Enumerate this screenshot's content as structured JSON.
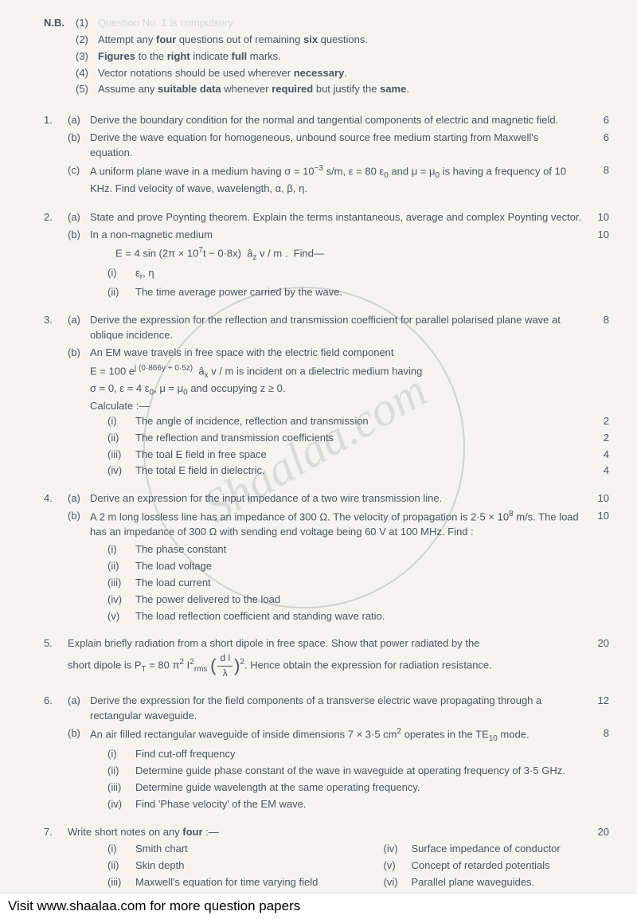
{
  "nb": {
    "label": "N.B.",
    "items": [
      {
        "num": "(1)",
        "text": "Question No. 1 is compulsory."
      },
      {
        "num": "(2)",
        "text_html": "Attempt any <b>four</b> questions out of remaining <b>six</b> questions."
      },
      {
        "num": "(3)",
        "text_html": "<b>Figures</b> to the <b>right</b> indicate <b>full</b> marks."
      },
      {
        "num": "(4)",
        "text_html": "Vector notations should be used wherever <b>necessary</b>."
      },
      {
        "num": "(5)",
        "text_html": "Assume any <b>suitable data</b> whenever <b>required</b> but justify the <b>same</b>."
      }
    ]
  },
  "questions": [
    {
      "num": "1.",
      "subs": [
        {
          "label": "(a)",
          "text": "Derive the boundary condition for the normal and tangential components of electric and magnetic field.",
          "marks": "6"
        },
        {
          "label": "(b)",
          "text": "Derive the wave equation for homogeneous, unbound source free medium starting from Maxwell's equation.",
          "marks": "6"
        },
        {
          "label": "(c)",
          "text_html": "A uniform plane wave in a medium having σ = 10<sup>−3</sup> s/m, ε = 80 ε<sub>0</sub> and μ = μ<sub>0</sub> is having a frequency of 10 KHz. Find velocity of wave, wavelength, α, β, η.",
          "marks": "8"
        }
      ]
    },
    {
      "num": "2.",
      "subs": [
        {
          "label": "(a)",
          "text": "State and prove Poynting theorem. Explain the terms instantaneous, average and complex Poynting vector.",
          "marks": "10"
        },
        {
          "label": "(b)",
          "text": "In a non-magnetic medium",
          "marks": "10",
          "eq_html": "E = 4 sin (2π × 10<sup>7</sup>t − 0·8x) &nbsp;â<sub>z</sub> v / m . &nbsp;Find—",
          "romans": [
            {
              "label": "(i)",
              "text_html": "ε<sub>r</sub>, η"
            },
            {
              "label": "(ii)",
              "text": "The time average power carried by the wave."
            }
          ]
        }
      ]
    },
    {
      "num": "3.",
      "subs": [
        {
          "label": "(a)",
          "text": "Derive the expression for the reflection and transmission coefficient for parallel polarised plane wave at oblique incidence.",
          "marks": "8"
        },
        {
          "label": "(b)",
          "text": "An EM wave travels in free space with the electric field component",
          "extra_lines_html": [
            "E = 100 e<sup>j (0·866y + 0·5z)</sup> &nbsp;â<sub>x</sub> v / m is incident on a dielectric medium having",
            "σ = 0, ε = 4 ε<sub>0</sub>, μ = μ<sub>0</sub> and occupying z ≥ 0.",
            "Calculate :—"
          ],
          "romans_marks": [
            {
              "label": "(i)",
              "text": "The angle of incidence, reflection and transmission",
              "marks": "2"
            },
            {
              "label": "(ii)",
              "text": "The reflection and transmission coefficients",
              "marks": "2"
            },
            {
              "label": "(iii)",
              "text": "The toal E field in free space",
              "marks": "4"
            },
            {
              "label": "(iv)",
              "text": "The total E field in dielectric.",
              "marks": "4"
            }
          ]
        }
      ]
    },
    {
      "num": "4.",
      "subs": [
        {
          "label": "(a)",
          "text": "Derive an expression for the input impedance of a two wire transmission line.",
          "marks": "10"
        },
        {
          "label": "(b)",
          "text_html": "A 2 m long lossless line has an impedance of 300 Ω. The velocity of propagation is 2·5 × 10<sup>8</sup> m/s. The load has an impedance of 300 Ω with sending end voltage being 60 V at 100 MHz. Find :",
          "marks": "10",
          "romans": [
            {
              "label": "(i)",
              "text": "The phase constant"
            },
            {
              "label": "(ii)",
              "text": "The load voltage"
            },
            {
              "label": "(iii)",
              "text": "The load current"
            },
            {
              "label": "(iv)",
              "text": "The power delivered to the load"
            },
            {
              "label": "(v)",
              "text": "The load reflection coefficient and standing wave ratio."
            }
          ]
        }
      ]
    },
    {
      "num": "5.",
      "plain_marks": "20",
      "text_parts": {
        "before": "Explain briefly radiation from a short dipole in free space. Show that power radiated by the",
        "formula_prefix": "short dipole is P",
        "formula_sub": "T",
        "formula_mid": " = 80 π",
        "formula_sup": "2",
        "formula_I": " I",
        "formula_Isup": "2",
        "formula_Isub": "rms",
        "frac_top": "d l",
        "frac_bot": "λ",
        "formula_exp": "2",
        "after": ". Hence obtain the expression for radiation resistance."
      }
    },
    {
      "num": "6.",
      "subs": [
        {
          "label": "(a)",
          "text": "Derive the expression for the field components of a transverse electric wave propagating through a rectangular waveguide.",
          "marks": "12"
        },
        {
          "label": "(b)",
          "text_html": "An air filled rectangular waveguide of inside dimensions 7 × 3·5 cm<sup>2</sup> operates in the TE<sub>10</sub> mode.",
          "marks": "8",
          "romans": [
            {
              "label": "(i)",
              "text": "Find cut-off frequency"
            },
            {
              "label": "(ii)",
              "text": "Determine guide phase constant of the wave in waveguide at operating frequency of 3·5 GHz."
            },
            {
              "label": "(iii)",
              "text": "Determine guide wavelength at the same operating frequency."
            },
            {
              "label": "(iv)",
              "text": "Find 'Phase velocity' of the EM wave."
            }
          ]
        }
      ]
    },
    {
      "num": "7.",
      "plain_marks": "20",
      "text_html": "Write short notes on any <b>four</b> :—",
      "two_col_romans": {
        "left": [
          {
            "label": "(i)",
            "text": "Smith chart"
          },
          {
            "label": "(ii)",
            "text": "Skin depth"
          },
          {
            "label": "(iii)",
            "text": "Maxwell's equation for time varying field"
          }
        ],
        "right": [
          {
            "label": "(iv)",
            "text": "Surface impedance of conductor"
          },
          {
            "label": "(v)",
            "text": "Concept of retarded potentials"
          },
          {
            "label": "(vi)",
            "text": "Parallel plane waveguides."
          }
        ]
      }
    }
  ],
  "footer": "Visit www.shaalaa.com for more question papers",
  "watermark_text": "Shaalaa.com"
}
